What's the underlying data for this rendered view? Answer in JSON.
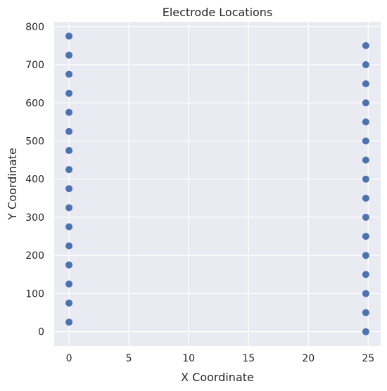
{
  "chart_data": {
    "type": "scatter",
    "title": "Electrode Locations",
    "xlabel": "X Coordinate",
    "ylabel": "Y Coordinate",
    "xlim": [
      -1.24,
      26.04
    ],
    "ylim": [
      -37.5,
      812.5
    ],
    "xticks": [
      0,
      5,
      10,
      15,
      20,
      25
    ],
    "yticks": [
      0,
      100,
      200,
      300,
      400,
      500,
      600,
      700,
      800
    ],
    "grid": true,
    "legend": "none",
    "colors": {
      "plot_background": "#eaeaf2",
      "grid": "#ffffff",
      "marker": "#4c72b0",
      "text": "#262626"
    },
    "series": [
      {
        "x": [
          0,
          0,
          0,
          0,
          0,
          0,
          0,
          0,
          0,
          0,
          0,
          0,
          0,
          0,
          0,
          0
        ],
        "y": [
          25,
          75,
          125,
          175,
          225,
          275,
          325,
          375,
          425,
          475,
          525,
          575,
          625,
          675,
          725,
          775
        ]
      },
      {
        "x": [
          24.8,
          24.8,
          24.8,
          24.8,
          24.8,
          24.8,
          24.8,
          24.8,
          24.8,
          24.8,
          24.8,
          24.8,
          24.8,
          24.8,
          24.8,
          24.8
        ],
        "y": [
          0,
          50,
          100,
          150,
          200,
          250,
          300,
          350,
          400,
          450,
          500,
          550,
          600,
          650,
          700,
          750
        ]
      }
    ]
  }
}
